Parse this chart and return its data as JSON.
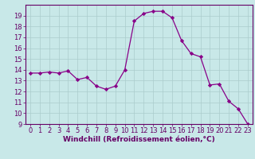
{
  "x": [
    0,
    1,
    2,
    3,
    4,
    5,
    6,
    7,
    8,
    9,
    10,
    11,
    12,
    13,
    14,
    15,
    16,
    17,
    18,
    19,
    20,
    21,
    22,
    23
  ],
  "y": [
    13.7,
    13.7,
    13.8,
    13.7,
    13.9,
    13.1,
    13.3,
    12.5,
    12.2,
    12.5,
    14.0,
    18.5,
    19.2,
    19.4,
    19.4,
    18.8,
    16.7,
    15.5,
    15.2,
    12.6,
    12.7,
    11.1,
    10.4,
    9.0
  ],
  "line_color": "#880088",
  "marker": "D",
  "marker_size": 2.2,
  "background_color": "#c8e8e8",
  "grid_color": "#aacccc",
  "xlim": [
    -0.5,
    23.5
  ],
  "ylim": [
    9,
    20
  ],
  "yticks": [
    9,
    10,
    11,
    12,
    13,
    14,
    15,
    16,
    17,
    18,
    19
  ],
  "xticks": [
    0,
    1,
    2,
    3,
    4,
    5,
    6,
    7,
    8,
    9,
    10,
    11,
    12,
    13,
    14,
    15,
    16,
    17,
    18,
    19,
    20,
    21,
    22,
    23
  ],
  "xlabel": "Windchill (Refroidissement éolien,°C)",
  "xlabel_fontsize": 6.5,
  "tick_fontsize": 6.0,
  "tick_color": "#660066",
  "spine_color": "#660066"
}
